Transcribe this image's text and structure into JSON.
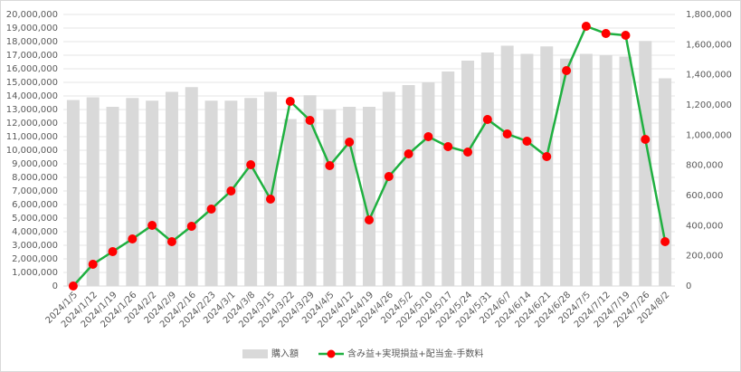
{
  "chart_data": {
    "type": "bar_line",
    "categories": [
      "2024/1/5",
      "2024/1/12",
      "2024/1/19",
      "2024/1/26",
      "2024/2/2",
      "2024/2/9",
      "2024/2/16",
      "2024/2/23",
      "2024/3/1",
      "2024/3/8",
      "2024/3/15",
      "2024/3/22",
      "2024/3/29",
      "2024/4/5",
      "2024/4/12",
      "2024/4/19",
      "2024/4/26",
      "2024/5/2",
      "2024/5/10",
      "2024/5/17",
      "2024/5/24",
      "2024/5/31",
      "2024/6/7",
      "2024/6/14",
      "2024/6/21",
      "2024/6/28",
      "2024/7/5",
      "2024/7/12",
      "2024/7/19",
      "2024/7/26",
      "2024/8/2"
    ],
    "series": [
      {
        "name": "購入額",
        "type": "bar",
        "color": "#d9d9d9",
        "values": [
          13700000,
          13900000,
          13200000,
          13850000,
          13650000,
          14300000,
          14650000,
          13650000,
          13650000,
          13850000,
          14300000,
          12300000,
          14050000,
          13000000,
          13200000,
          13200000,
          14300000,
          14800000,
          15000000,
          15800000,
          16600000,
          17200000,
          17700000,
          17100000,
          17650000,
          16750000,
          17100000,
          17000000,
          16900000,
          18050000,
          15300000
        ]
      },
      {
        "name": "含み益+実現損益+配当金-手数料",
        "type": "line",
        "axis": "y2",
        "color": "#1fb040",
        "marker_color": "#ff0000",
        "values": [
          0,
          144000,
          228000,
          312000,
          402000,
          294000,
          396000,
          510000,
          630000,
          804000,
          576000,
          1224000,
          1098000,
          798000,
          954000,
          438000,
          726000,
          876000,
          990000,
          924000,
          888000,
          1104000,
          1008000,
          960000,
          858000,
          1428000,
          1722000,
          1674000,
          1662000,
          972000,
          294000
        ]
      }
    ],
    "ylim": [
      0,
      20000000
    ],
    "yticks": [
      0,
      {
        "value": 1000000,
        "label": "1,000,000"
      },
      {
        "value": 2000000,
        "label": "2,000,000"
      },
      {
        "value": 3000000,
        "label": "3,000,000"
      },
      {
        "value": 4000000,
        "label": "4,000,000"
      },
      {
        "value": 5000000,
        "label": "5,000,000"
      },
      {
        "value": 6000000,
        "label": "6,000,000"
      },
      {
        "value": 7000000,
        "label": "7,000,000"
      },
      {
        "value": 8000000,
        "label": "8,000,000"
      },
      {
        "value": 9000000,
        "label": "9,000,000"
      },
      {
        "value": 10000000,
        "label": "10,000,000"
      },
      {
        "value": 11000000,
        "label": "11,000,000"
      },
      {
        "value": 12000000,
        "label": "12,000,000"
      },
      {
        "value": 13000000,
        "label": "13,000,000"
      },
      {
        "value": 14000000,
        "label": "14,000,000"
      },
      {
        "value": 15000000,
        "label": "15,000,000"
      },
      {
        "value": 16000000,
        "label": "16,000,000"
      },
      {
        "value": 17000000,
        "label": "17,000,000"
      },
      {
        "value": 18000000,
        "label": "18,000,000"
      },
      {
        "value": 19000000,
        "label": "19,000,000"
      },
      {
        "value": 20000000,
        "label": "20,000,000"
      }
    ],
    "y2lim": [
      0,
      1800000
    ],
    "y2ticks": [
      0,
      {
        "value": 200000,
        "label": "200,000"
      },
      {
        "value": 400000,
        "label": "400,000"
      },
      {
        "value": 600000,
        "label": "600,000"
      },
      {
        "value": 800000,
        "label": "800,000"
      },
      {
        "value": 1000000,
        "label": "1,000,000"
      },
      {
        "value": 1200000,
        "label": "1,200,000"
      },
      {
        "value": 1400000,
        "label": "1,400,000"
      },
      {
        "value": 1600000,
        "label": "1,600,000"
      },
      {
        "value": 1800000,
        "label": "1,800,000"
      }
    ],
    "grid": true,
    "legend": "bottom"
  }
}
